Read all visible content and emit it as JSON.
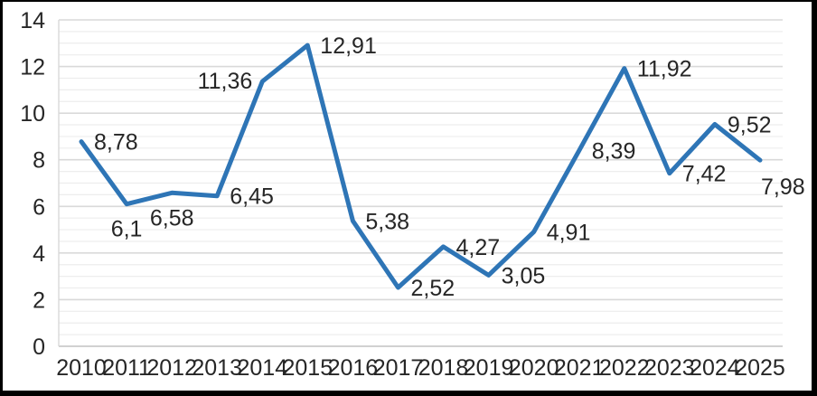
{
  "chart_data": {
    "type": "line",
    "title": "",
    "xlabel": "",
    "ylabel": "",
    "categories": [
      "2010",
      "2011",
      "2012",
      "2013",
      "2014",
      "2015",
      "2016",
      "2017",
      "2018",
      "2019",
      "2020",
      "2021",
      "2022",
      "2023",
      "2024",
      "2025"
    ],
    "values": [
      8.78,
      6.1,
      6.58,
      6.45,
      11.36,
      12.91,
      5.38,
      2.52,
      4.27,
      3.05,
      4.91,
      8.39,
      11.92,
      7.42,
      9.52,
      7.98
    ],
    "point_labels": [
      "8,78",
      "6,1",
      "6,58",
      "6,45",
      "11,36",
      "12,91",
      "5,38",
      "2,52",
      "4,27",
      "3,05",
      "4,91",
      "8,39",
      "11,92",
      "7,42",
      "9,52",
      "7,98"
    ],
    "label_placements": [
      "right",
      "below",
      "below",
      "right",
      "left",
      "right",
      "right",
      "right",
      "right",
      "right",
      "right",
      "right",
      "right",
      "right",
      "right",
      "below-right"
    ],
    "y_ticks": [
      "0",
      "2",
      "4",
      "6",
      "8",
      "10",
      "12",
      "14"
    ],
    "ylim": [
      0,
      14
    ],
    "y_tick_step": 2,
    "y_minor_step": 0.5,
    "grid": true,
    "legend": "none",
    "colors": {
      "line": "#2E75B6",
      "label_text": "#262626",
      "axis_text": "#262626",
      "major_grid": "#d9d9d9",
      "minor_grid": "#ededed",
      "zero_axis": "#c2c2c2",
      "left_axis": "#d9d9d9",
      "frame_border": "#000000",
      "background": "#ffffff"
    }
  }
}
